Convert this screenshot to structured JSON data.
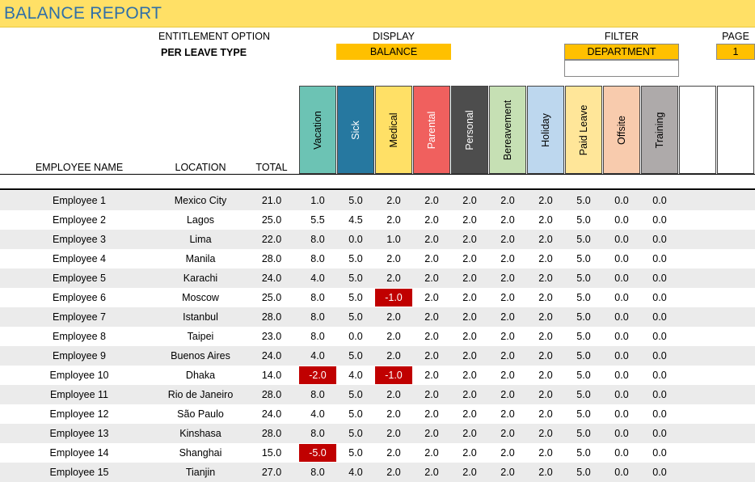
{
  "title": "BALANCE REPORT",
  "options": {
    "entitlement_label": "ENTITLEMENT OPTION",
    "entitlement_value": "PER LEAVE TYPE",
    "display_label": "DISPLAY",
    "display_value": "BALANCE",
    "filter_label": "FILTER",
    "filter_value": "DEPARTMENT",
    "filter_sub_value": "",
    "page_label": "PAGE",
    "page_value": "1"
  },
  "columns": {
    "employee": "EMPLOYEE NAME",
    "location": "LOCATION",
    "total": "TOTAL"
  },
  "leave_types": [
    {
      "name": "Vacation",
      "color": "#6cc3b4",
      "text": "#000000"
    },
    {
      "name": "Sick",
      "color": "#2678a0",
      "text": "#ffffff"
    },
    {
      "name": "Medical",
      "color": "#ffe066",
      "text": "#000000"
    },
    {
      "name": "Parental",
      "color": "#f0605e",
      "text": "#ffffff"
    },
    {
      "name": "Personal",
      "color": "#4d4d4d",
      "text": "#ffffff"
    },
    {
      "name": "Bereavement",
      "color": "#c6e0b4",
      "text": "#000000"
    },
    {
      "name": "Holiday",
      "color": "#bdd7ee",
      "text": "#000000"
    },
    {
      "name": "Paid Leave",
      "color": "#ffe699",
      "text": "#000000"
    },
    {
      "name": "Offsite",
      "color": "#f8cbad",
      "text": "#000000"
    },
    {
      "name": "Training",
      "color": "#aeaaaa",
      "text": "#000000"
    },
    {
      "name": "",
      "color": "#ffffff",
      "text": "#000000"
    },
    {
      "name": "",
      "color": "#ffffff",
      "text": "#000000"
    }
  ],
  "rows": [
    {
      "name": "Employee 1",
      "location": "Mexico City",
      "total": "21.0",
      "values": [
        "1.0",
        "5.0",
        "2.0",
        "2.0",
        "2.0",
        "2.0",
        "2.0",
        "5.0",
        "0.0",
        "0.0"
      ]
    },
    {
      "name": "Employee 2",
      "location": "Lagos",
      "total": "25.0",
      "values": [
        "5.5",
        "4.5",
        "2.0",
        "2.0",
        "2.0",
        "2.0",
        "2.0",
        "5.0",
        "0.0",
        "0.0"
      ]
    },
    {
      "name": "Employee 3",
      "location": "Lima",
      "total": "22.0",
      "values": [
        "8.0",
        "0.0",
        "1.0",
        "2.0",
        "2.0",
        "2.0",
        "2.0",
        "5.0",
        "0.0",
        "0.0"
      ]
    },
    {
      "name": "Employee 4",
      "location": "Manila",
      "total": "28.0",
      "values": [
        "8.0",
        "5.0",
        "2.0",
        "2.0",
        "2.0",
        "2.0",
        "2.0",
        "5.0",
        "0.0",
        "0.0"
      ]
    },
    {
      "name": "Employee 5",
      "location": "Karachi",
      "total": "24.0",
      "values": [
        "4.0",
        "5.0",
        "2.0",
        "2.0",
        "2.0",
        "2.0",
        "2.0",
        "5.0",
        "0.0",
        "0.0"
      ]
    },
    {
      "name": "Employee 6",
      "location": "Moscow",
      "total": "25.0",
      "values": [
        "8.0",
        "5.0",
        "-1.0",
        "2.0",
        "2.0",
        "2.0",
        "2.0",
        "5.0",
        "0.0",
        "0.0"
      ]
    },
    {
      "name": "Employee 7",
      "location": "Istanbul",
      "total": "28.0",
      "values": [
        "8.0",
        "5.0",
        "2.0",
        "2.0",
        "2.0",
        "2.0",
        "2.0",
        "5.0",
        "0.0",
        "0.0"
      ]
    },
    {
      "name": "Employee 8",
      "location": "Taipei",
      "total": "23.0",
      "values": [
        "8.0",
        "0.0",
        "2.0",
        "2.0",
        "2.0",
        "2.0",
        "2.0",
        "5.0",
        "0.0",
        "0.0"
      ]
    },
    {
      "name": "Employee 9",
      "location": "Buenos Aires",
      "total": "24.0",
      "values": [
        "4.0",
        "5.0",
        "2.0",
        "2.0",
        "2.0",
        "2.0",
        "2.0",
        "5.0",
        "0.0",
        "0.0"
      ]
    },
    {
      "name": "Employee 10",
      "location": "Dhaka",
      "total": "14.0",
      "values": [
        "-2.0",
        "4.0",
        "-1.0",
        "2.0",
        "2.0",
        "2.0",
        "2.0",
        "5.0",
        "0.0",
        "0.0"
      ]
    },
    {
      "name": "Employee 11",
      "location": "Rio de Janeiro",
      "total": "28.0",
      "values": [
        "8.0",
        "5.0",
        "2.0",
        "2.0",
        "2.0",
        "2.0",
        "2.0",
        "5.0",
        "0.0",
        "0.0"
      ]
    },
    {
      "name": "Employee 12",
      "location": "São Paulo",
      "total": "24.0",
      "values": [
        "4.0",
        "5.0",
        "2.0",
        "2.0",
        "2.0",
        "2.0",
        "2.0",
        "5.0",
        "0.0",
        "0.0"
      ]
    },
    {
      "name": "Employee 13",
      "location": "Kinshasa",
      "total": "28.0",
      "values": [
        "8.0",
        "5.0",
        "2.0",
        "2.0",
        "2.0",
        "2.0",
        "2.0",
        "5.0",
        "0.0",
        "0.0"
      ]
    },
    {
      "name": "Employee 14",
      "location": "Shanghai",
      "total": "15.0",
      "values": [
        "-5.0",
        "5.0",
        "2.0",
        "2.0",
        "2.0",
        "2.0",
        "2.0",
        "5.0",
        "0.0",
        "0.0"
      ]
    },
    {
      "name": "Employee 15",
      "location": "Tianjin",
      "total": "27.0",
      "values": [
        "8.0",
        "4.0",
        "2.0",
        "2.0",
        "2.0",
        "2.0",
        "2.0",
        "5.0",
        "0.0",
        "0.0"
      ]
    }
  ],
  "colors": {
    "title_bg": "#ffe066",
    "title_text": "#2f6fa8",
    "option_box": "#ffc000",
    "negative_bg": "#c00000",
    "row_shade": "#ebebeb"
  }
}
